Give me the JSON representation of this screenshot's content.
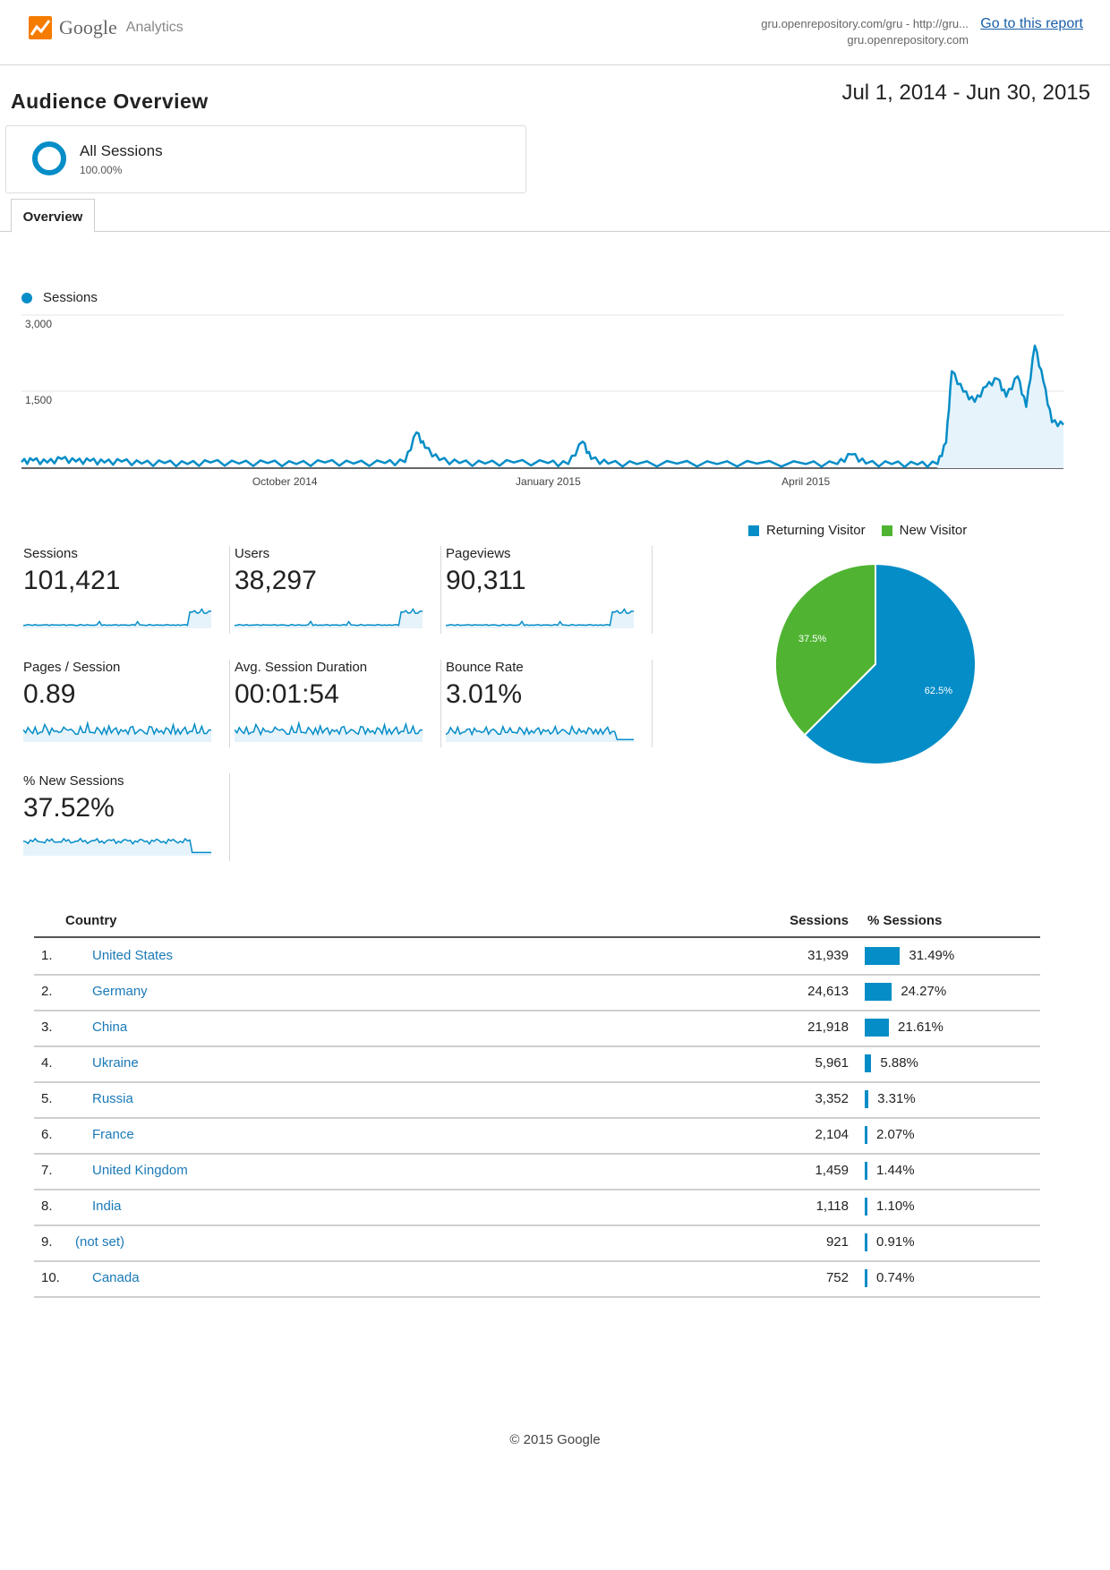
{
  "header": {
    "logo_google": "Google",
    "logo_analytics": "Analytics",
    "account_line1": "gru.openrepository.com/gru - http://gru...",
    "account_line2": "gru.openrepository.com",
    "go_to_report": "Go to this report"
  },
  "page": {
    "title": "Audience Overview",
    "date_range": "Jul 1, 2014 - Jun 30, 2015"
  },
  "segment": {
    "name": "All Sessions",
    "percent": "100.00%"
  },
  "tabs": [
    {
      "label": "Overview"
    }
  ],
  "colors": {
    "accent": "#058dc7",
    "new_visitor": "#50b432",
    "link": "#1a7ab8"
  },
  "chart_data": [
    {
      "type": "area",
      "series": [
        {
          "name": "Sessions"
        }
      ],
      "y_ticks": [
        "3,000",
        "1,500"
      ],
      "ylim": [
        0,
        3000
      ],
      "x_ticks": [
        "October 2014",
        "January 2015",
        "April 2015"
      ],
      "x_tick_dates": [
        "2014-10-01",
        "2015-01-01",
        "2015-04-01"
      ],
      "x_range": [
        "2014-07-01",
        "2015-06-30"
      ],
      "points": [
        [
          "2014-07-01",
          120
        ],
        [
          "2014-07-05",
          150
        ],
        [
          "2014-07-10",
          110
        ],
        [
          "2014-07-15",
          180
        ],
        [
          "2014-07-20",
          130
        ],
        [
          "2014-07-25",
          140
        ],
        [
          "2014-07-30",
          110
        ],
        [
          "2014-08-05",
          130
        ],
        [
          "2014-08-12",
          90
        ],
        [
          "2014-08-20",
          100
        ],
        [
          "2014-08-28",
          80
        ],
        [
          "2014-09-05",
          110
        ],
        [
          "2014-09-15",
          90
        ],
        [
          "2014-09-25",
          100
        ],
        [
          "2014-10-05",
          80
        ],
        [
          "2014-10-15",
          110
        ],
        [
          "2014-10-25",
          90
        ],
        [
          "2014-11-05",
          100
        ],
        [
          "2014-11-12",
          120
        ],
        [
          "2014-11-16",
          700
        ],
        [
          "2014-11-19",
          400
        ],
        [
          "2014-11-24",
          160
        ],
        [
          "2014-12-01",
          100
        ],
        [
          "2014-12-10",
          90
        ],
        [
          "2014-12-20",
          110
        ],
        [
          "2015-01-01",
          100
        ],
        [
          "2015-01-08",
          80
        ],
        [
          "2015-01-13",
          520
        ],
        [
          "2015-01-16",
          180
        ],
        [
          "2015-01-22",
          90
        ],
        [
          "2015-02-01",
          80
        ],
        [
          "2015-02-15",
          90
        ],
        [
          "2015-03-01",
          80
        ],
        [
          "2015-03-15",
          90
        ],
        [
          "2015-04-01",
          80
        ],
        [
          "2015-04-12",
          80
        ],
        [
          "2015-04-17",
          270
        ],
        [
          "2015-04-22",
          90
        ],
        [
          "2015-05-01",
          80
        ],
        [
          "2015-05-10",
          70
        ],
        [
          "2015-05-17",
          80
        ],
        [
          "2015-05-20",
          500
        ],
        [
          "2015-05-22",
          1900
        ],
        [
          "2015-05-26",
          1500
        ],
        [
          "2015-05-30",
          1300
        ],
        [
          "2015-06-03",
          1600
        ],
        [
          "2015-06-07",
          1750
        ],
        [
          "2015-06-10",
          1400
        ],
        [
          "2015-06-14",
          1800
        ],
        [
          "2015-06-17",
          1200
        ],
        [
          "2015-06-20",
          2400
        ],
        [
          "2015-06-23",
          1700
        ],
        [
          "2015-06-26",
          900
        ],
        [
          "2015-06-30",
          850
        ]
      ]
    },
    {
      "type": "pie",
      "legend": [
        "Returning Visitor",
        "New Visitor"
      ],
      "slices": [
        {
          "name": "Returning Visitor",
          "value": 62.5,
          "label": "62.5%",
          "color": "#058dc7"
        },
        {
          "name": "New Visitor",
          "value": 37.5,
          "label": "37.5%",
          "color": "#50b432"
        }
      ]
    }
  ],
  "metrics": [
    {
      "label": "Sessions",
      "value": "101,421",
      "shape": "late-rise"
    },
    {
      "label": "Users",
      "value": "38,297",
      "shape": "late-rise"
    },
    {
      "label": "Pageviews",
      "value": "90,311",
      "shape": "late-rise"
    },
    {
      "label": "Pages / Session",
      "value": "0.89",
      "shape": "spiky"
    },
    {
      "label": "Avg. Session Duration",
      "value": "00:01:54",
      "shape": "spiky"
    },
    {
      "label": "Bounce Rate",
      "value": "3.01%",
      "shape": "spiky-drop"
    },
    {
      "label": "% New Sessions",
      "value": "37.52%",
      "shape": "plateau-drop"
    }
  ],
  "table": {
    "headers": {
      "country": "Country",
      "sessions": "Sessions",
      "pct": "% Sessions"
    },
    "rows": [
      {
        "rank": "1.",
        "country": "United States",
        "sessions": "31,939",
        "pct": "31.49%",
        "pct_value": 31.49
      },
      {
        "rank": "2.",
        "country": "Germany",
        "sessions": "24,613",
        "pct": "24.27%",
        "pct_value": 24.27
      },
      {
        "rank": "3.",
        "country": "China",
        "sessions": "21,918",
        "pct": "21.61%",
        "pct_value": 21.61
      },
      {
        "rank": "4.",
        "country": "Ukraine",
        "sessions": "5,961",
        "pct": "5.88%",
        "pct_value": 5.88
      },
      {
        "rank": "5.",
        "country": "Russia",
        "sessions": "3,352",
        "pct": "3.31%",
        "pct_value": 3.31
      },
      {
        "rank": "6.",
        "country": "France",
        "sessions": "2,104",
        "pct": "2.07%",
        "pct_value": 2.07
      },
      {
        "rank": "7.",
        "country": "United Kingdom",
        "sessions": "1,459",
        "pct": "1.44%",
        "pct_value": 1.44
      },
      {
        "rank": "8.",
        "country": "India",
        "sessions": "1,118",
        "pct": "1.10%",
        "pct_value": 1.1
      },
      {
        "rank": "9.",
        "country": "(not set)",
        "sessions": "921",
        "pct": "0.91%",
        "pct_value": 0.91
      },
      {
        "rank": "10.",
        "country": "Canada",
        "sessions": "752",
        "pct": "0.74%",
        "pct_value": 0.74
      }
    ]
  },
  "footer": "© 2015 Google"
}
